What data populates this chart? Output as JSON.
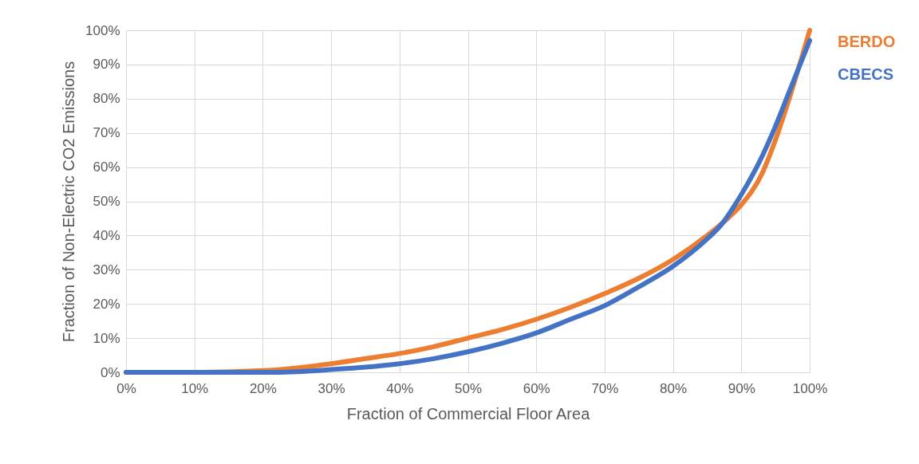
{
  "chart_data": {
    "type": "line",
    "xlabel": "Fraction of Commercial Floor Area",
    "ylabel": "Fraction of Non-Electric CO2 Emissions",
    "xlim": [
      0,
      100
    ],
    "ylim": [
      0,
      100
    ],
    "xticks": [
      {
        "value": 0,
        "label": "0%"
      },
      {
        "value": 10,
        "label": "10%"
      },
      {
        "value": 20,
        "label": "20%"
      },
      {
        "value": 30,
        "label": "30%"
      },
      {
        "value": 40,
        "label": "40%"
      },
      {
        "value": 50,
        "label": "50%"
      },
      {
        "value": 60,
        "label": "60%"
      },
      {
        "value": 70,
        "label": "70%"
      },
      {
        "value": 80,
        "label": "80%"
      },
      {
        "value": 90,
        "label": "90%"
      },
      {
        "value": 100,
        "label": "100%"
      }
    ],
    "yticks": [
      {
        "value": 0,
        "label": "0%"
      },
      {
        "value": 10,
        "label": "10%"
      },
      {
        "value": 20,
        "label": "20%"
      },
      {
        "value": 30,
        "label": "30%"
      },
      {
        "value": 40,
        "label": "40%"
      },
      {
        "value": 50,
        "label": "50%"
      },
      {
        "value": 60,
        "label": "60%"
      },
      {
        "value": 70,
        "label": "70%"
      },
      {
        "value": 80,
        "label": "80%"
      },
      {
        "value": 90,
        "label": "90%"
      },
      {
        "value": 100,
        "label": "100%"
      }
    ],
    "grid": true,
    "marker": "none",
    "line_style": "solid",
    "series": [
      {
        "name": "BERDO",
        "color": "#ed7d31",
        "x": [
          0,
          10,
          20,
          25,
          30,
          35,
          40,
          45,
          50,
          55,
          60,
          65,
          70,
          75,
          80,
          85,
          88,
          90,
          93,
          95,
          97,
          100
        ],
        "values": [
          0,
          0,
          0.5,
          1.3,
          2.5,
          4,
          5.5,
          7.5,
          10,
          12.5,
          15.5,
          19,
          23,
          27.5,
          33,
          40,
          45,
          49,
          58,
          68,
          80,
          100
        ]
      },
      {
        "name": "CBECS",
        "color": "#4472c4",
        "x": [
          0,
          10,
          20,
          25,
          30,
          35,
          40,
          45,
          50,
          55,
          60,
          65,
          70,
          75,
          80,
          85,
          87,
          90,
          93,
          95,
          97,
          100
        ],
        "values": [
          0,
          0,
          0,
          0.2,
          0.8,
          1.5,
          2.5,
          4,
          6,
          8.5,
          11.5,
          15.5,
          19.5,
          25,
          31,
          39,
          43,
          52,
          63,
          72,
          82,
          97
        ]
      }
    ]
  }
}
